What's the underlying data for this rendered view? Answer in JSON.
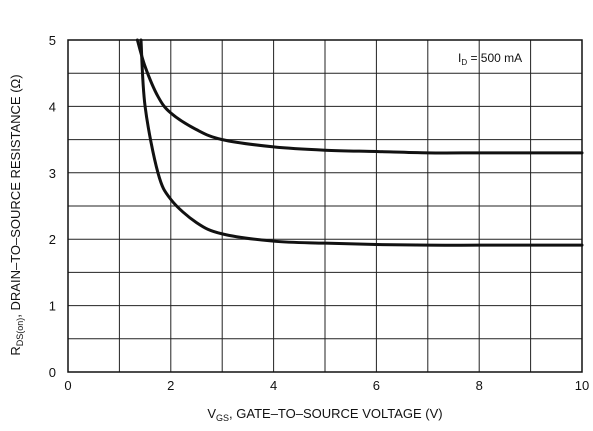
{
  "chart_data": {
    "type": "line",
    "xlabel": {
      "main": "V",
      "sub": "GS",
      "rest": ", GATE–TO–SOURCE VOLTAGE (V)"
    },
    "ylabel": {
      "main": "R",
      "sub": "DS(on)",
      "rest": ", DRAIN–TO–SOURCE RESISTANCE (Ω)"
    },
    "annotation": {
      "main": "I",
      "sub": "D",
      "rest": " = 500 mA"
    },
    "xlim": [
      0,
      10
    ],
    "ylim": [
      0,
      5
    ],
    "xticks": [
      0,
      2,
      4,
      6,
      8,
      10
    ],
    "yticks": [
      0,
      1,
      2,
      3,
      4,
      5
    ],
    "x_minor_step": 1,
    "y_minor_step": 0.5,
    "grid": true,
    "series": [
      {
        "x": [
          1.35,
          1.5,
          1.75,
          2.0,
          2.5,
          3.0,
          4.0,
          5.0,
          6.0,
          7.0,
          8.0,
          9.0,
          10.0
        ],
        "values": [
          5.0,
          4.6,
          4.15,
          3.9,
          3.65,
          3.5,
          3.39,
          3.34,
          3.32,
          3.3,
          3.3,
          3.3,
          3.3
        ]
      },
      {
        "x": [
          1.42,
          1.5,
          1.75,
          2.0,
          2.5,
          3.0,
          4.0,
          5.0,
          6.0,
          7.0,
          8.0,
          9.0,
          10.0
        ],
        "values": [
          5.0,
          4.0,
          3.0,
          2.6,
          2.25,
          2.08,
          1.97,
          1.94,
          1.92,
          1.91,
          1.91,
          1.91,
          1.91
        ]
      }
    ]
  }
}
